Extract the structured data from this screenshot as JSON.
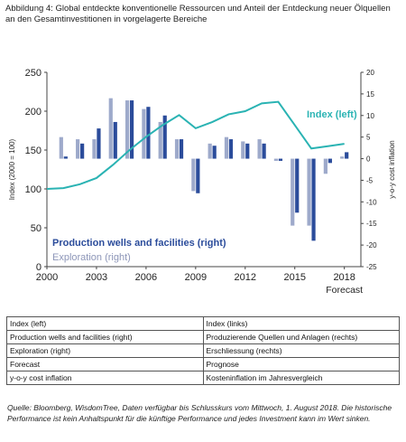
{
  "title": "Abbildung 4: Global entdeckte konventionelle Ressourcen und Anteil der Entdeckung neuer Ölquellen an den Gesamtinvestitionen in vorgelagerte Bereiche",
  "chart_data": {
    "type": "bar",
    "left_axis": {
      "label": "Index (2000 = 100)",
      "ylim": [
        0,
        250
      ],
      "ticks": [
        "0",
        "50",
        "100",
        "150",
        "200",
        "250"
      ]
    },
    "right_axis": {
      "label": "y-o-y cost inflation",
      "ylim": [
        -25,
        20
      ],
      "ticks": [
        "-25",
        "-20",
        "-15",
        "-10",
        "-5",
        "0",
        "5",
        "10",
        "15",
        "20"
      ]
    },
    "x_axis": {
      "xlim": [
        2000,
        2019
      ],
      "ticks": [
        "2000",
        "2003",
        "2006",
        "2009",
        "2012",
        "2015",
        "2018"
      ],
      "forecast_label": "Forecast"
    },
    "series": [
      {
        "name": "Index (left)",
        "axis": "left",
        "kind": "line",
        "color": "#2ab3b3",
        "x": [
          2000,
          2001,
          2002,
          2003,
          2004,
          2005,
          2006,
          2007,
          2008,
          2009,
          2010,
          2011,
          2012,
          2013,
          2014,
          2015,
          2016,
          2017,
          2018
        ],
        "values": [
          100,
          101,
          106,
          114,
          131,
          150,
          167,
          182,
          195,
          178,
          186,
          196,
          200,
          210,
          212,
          182,
          152,
          155,
          158
        ]
      },
      {
        "name": "Production wells and facilities (right)",
        "axis": "right",
        "kind": "bar",
        "color": "#2b4c9b",
        "x": [
          2001,
          2002,
          2003,
          2004,
          2005,
          2006,
          2007,
          2008,
          2009,
          2010,
          2011,
          2012,
          2013,
          2014,
          2015,
          2016,
          2017,
          2018
        ],
        "values": [
          0.5,
          3.5,
          7,
          8.5,
          13.5,
          12,
          10,
          4.5,
          -8,
          3,
          4.5,
          3.5,
          3.5,
          -0.5,
          -12.5,
          -19,
          -1,
          1.5
        ]
      },
      {
        "name": "Exploration (right)",
        "axis": "right",
        "kind": "bar",
        "color": "#9eaacb",
        "x": [
          2001,
          2002,
          2003,
          2004,
          2005,
          2006,
          2007,
          2008,
          2009,
          2010,
          2011,
          2012,
          2013,
          2014,
          2015,
          2016,
          2017,
          2018
        ],
        "values": [
          5,
          4.5,
          4.5,
          14,
          13.5,
          11.5,
          8.5,
          4.5,
          -7.5,
          3.5,
          5,
          4,
          4.5,
          -0.5,
          -15.5,
          -15.5,
          -3.5,
          0.5
        ]
      }
    ],
    "annotations": {
      "index_label": "Index (left)",
      "production_label": "Production wells and facilities (right)",
      "exploration_label": "Exploration (right)"
    },
    "grid": false
  },
  "legend_table": [
    [
      "Index (left)",
      "Index (links)"
    ],
    [
      "Production wells and facilities (right)",
      "Produzierende Quellen und Anlagen (rechts)"
    ],
    [
      "Exploration (right)",
      "Erschliessung (rechts)"
    ],
    [
      "Forecast",
      "Prognose"
    ],
    [
      "y-o-y cost inflation",
      "Kosteninflation im Jahresvergleich"
    ]
  ],
  "source": "Quelle: Bloomberg, WisdomTree, Daten verfügbar bis Schlusskurs vom Mittwoch, 1. August 2018. Die historische Performance ist kein Anhaltspunkt für die künftige Performance und jedes Investment kann im Wert sinken."
}
